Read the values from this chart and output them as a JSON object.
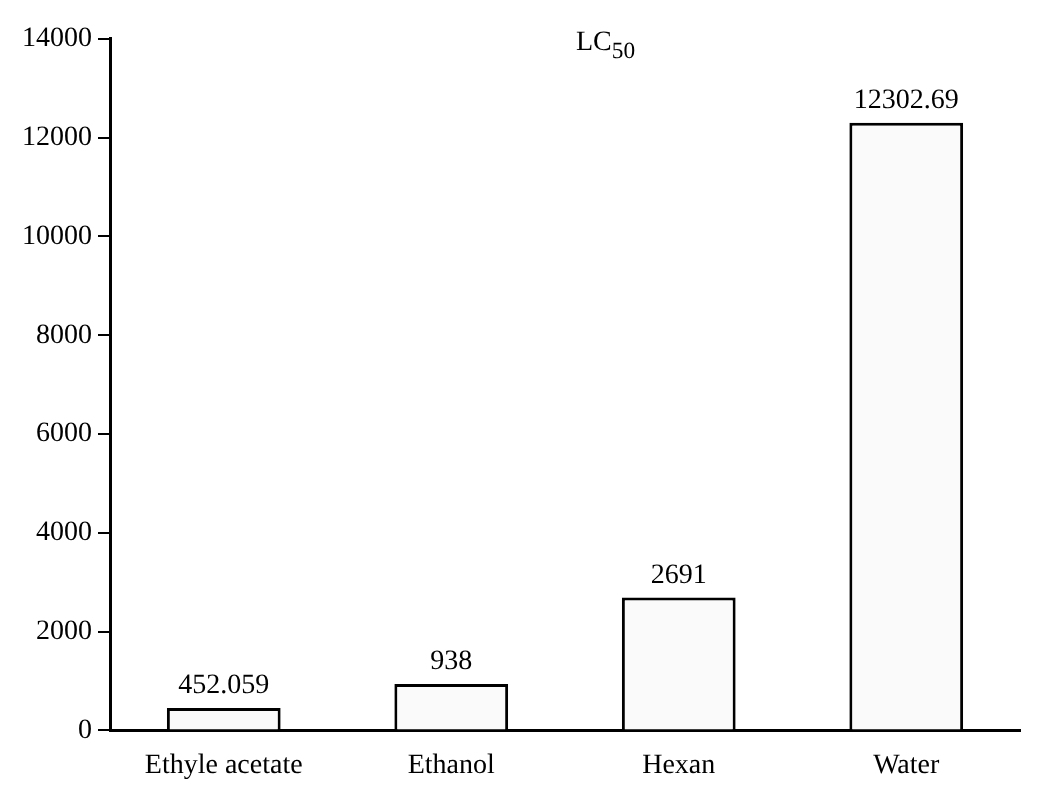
{
  "chart_data": {
    "type": "bar",
    "title": "LC$_{50}$",
    "categories": [
      "Ethyle acetate",
      "Ethanol",
      "Hexan",
      "Water"
    ],
    "values": [
      452.059,
      938,
      2691,
      12302.69
    ],
    "color": "#fafafa",
    "data_labels": true,
    "ylim": [
      0,
      14000
    ],
    "yticks": [
      0,
      2000,
      4000,
      6000,
      8000,
      10000,
      12000,
      14000
    ],
    "grid": false,
    "legend": false
  }
}
